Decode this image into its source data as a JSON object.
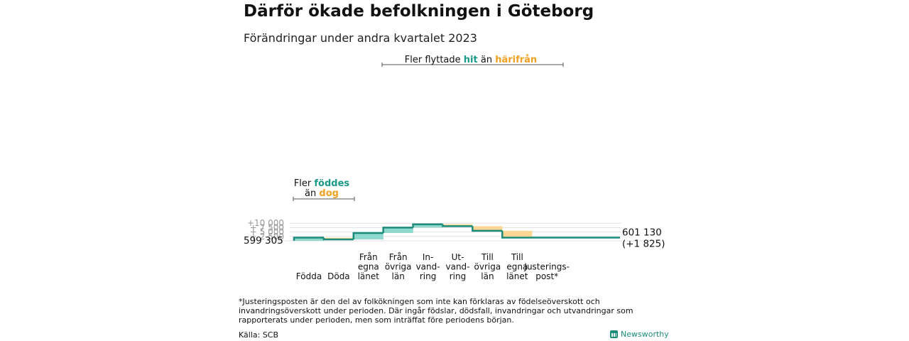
{
  "title": "Därför ökade befolkningen i Göteborg",
  "subtitle": "Förändringar under andra kvartalet 2023",
  "colors": {
    "increase": "#8ed8cc",
    "decrease": "#fcd692",
    "line": "#1c8c7a",
    "teal_text": "#1a9a86",
    "orange_text": "#f0a020",
    "grid": "#e0e0e0",
    "tick": "#999999"
  },
  "chart_data": {
    "type": "waterfall",
    "title": "Därför ökade befolkningen i Göteborg",
    "subtitle": "Förändringar under andra kvartalet 2023",
    "start_value": 599305,
    "start_label": "599 305",
    "end_value": 601130,
    "end_label": "601 130",
    "end_change_label": "(+1 825)",
    "ylim": [
      0,
      10000
    ],
    "yticks": [
      {
        "value": 2500,
        "label": "+ 2 500"
      },
      {
        "value": 5000,
        "label": "+ 5 000"
      },
      {
        "value": 7500,
        "label": "+ 7 500"
      },
      {
        "value": 10000,
        "label": "+10 000"
      }
    ],
    "categories": [
      {
        "label": [
          "Födda"
        ],
        "delta": 1800
      },
      {
        "label": [
          "Döda"
        ],
        "delta": -1000
      },
      {
        "label": [
          "Från",
          "egna",
          "länet"
        ],
        "delta": 3650
      },
      {
        "label": [
          "Från",
          "övriga",
          "län"
        ],
        "delta": 3050
      },
      {
        "label": [
          "In-",
          "vand-",
          "ring"
        ],
        "delta": 1900
      },
      {
        "label": [
          "Ut-",
          "vand-",
          "ring"
        ],
        "delta": -1100
      },
      {
        "label": [
          "Till",
          "övriga",
          "län"
        ],
        "delta": -2600
      },
      {
        "label": [
          "Till",
          "egna",
          "länet"
        ],
        "delta": -3875
      },
      {
        "label": [
          "Justerings-",
          "post*"
        ],
        "delta": 0
      }
    ],
    "annotations": {
      "births": {
        "line1_a": "Fler ",
        "line1_b": "föddes",
        "line2_a": "än ",
        "line2_b": "dog"
      },
      "migration": {
        "a": "Fler flyttade ",
        "b": "hit",
        "c": "  än ",
        "d": "härifrån"
      }
    }
  },
  "footnote": "*Justeringsposten är den del av folkökningen som inte kan förklaras av födelseöverskott och invandringsöverskott under perioden. Där ingår födslar, dödsfall, invandringar och utvandringar som rapporterats under perioden, men som inträffat före periodens början.",
  "source": "Källa: SCB",
  "brand": "Newsworthy"
}
